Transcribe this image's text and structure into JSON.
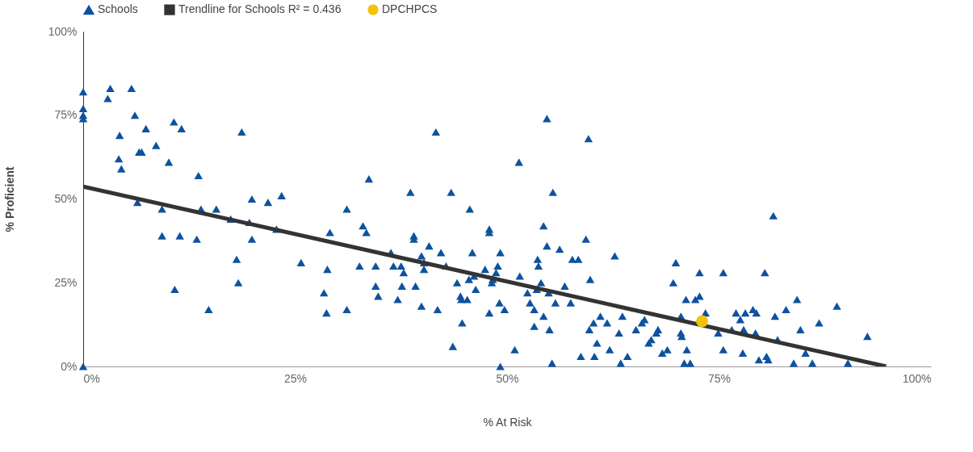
{
  "chart_data": {
    "type": "scatter",
    "xlabel": "% At Risk",
    "ylabel": "% Proficient",
    "xlim": [
      0,
      100
    ],
    "ylim": [
      0,
      100
    ],
    "xticks": [
      {
        "value": 0,
        "label": "0%"
      },
      {
        "value": 25,
        "label": "25%"
      },
      {
        "value": 50,
        "label": "50%"
      },
      {
        "value": 75,
        "label": "75%"
      },
      {
        "value": 100,
        "label": "100%"
      }
    ],
    "yticks": [
      {
        "value": 0,
        "label": "0%"
      },
      {
        "value": 25,
        "label": "25%"
      },
      {
        "value": 50,
        "label": "50%"
      },
      {
        "value": 75,
        "label": "75%"
      },
      {
        "value": 100,
        "label": "100%"
      }
    ],
    "grid": false,
    "legend": "top",
    "series": [
      {
        "name": "Schools",
        "marker": "triangle",
        "color": "#0d52a0",
        "x": [
          0,
          0,
          0,
          0,
          0,
          3.2,
          2.9,
          5.7,
          6.1,
          4.3,
          7.4,
          10.7,
          11.6,
          4.2,
          4.5,
          8.6,
          6.6,
          6.9,
          10.1,
          13.6,
          18.7,
          6.4,
          9.3,
          9.3,
          11.4,
          13.4,
          13.9,
          15.7,
          17.4,
          19.9,
          19.9,
          19.6,
          21.8,
          23.4,
          22.8,
          18.1,
          18.3,
          10.8,
          14.8,
          25.7,
          29.1,
          28.8,
          28.4,
          28.7,
          31.1,
          31.1,
          32.6,
          33,
          33.4,
          33.7,
          34.5,
          34.5,
          34.8,
          38.6,
          36.3,
          36.6,
          37.5,
          37.8,
          37.1,
          37.6,
          39,
          39,
          39.9,
          40.2,
          40.2,
          39.2,
          39.9,
          40.8,
          41.6,
          41.8,
          42.2,
          43.4,
          42.8,
          43.6,
          44.5,
          44.6,
          44.1,
          44.7,
          45.5,
          46.1,
          45.6,
          45.9,
          45.3,
          46.3,
          47.4,
          47.9,
          47.9,
          47.9,
          48.2,
          48.3,
          49.1,
          48.9,
          49.2,
          49.2,
          49.7,
          48.7,
          51.4,
          50.9,
          51.5,
          52.4,
          52.7,
          53.2,
          53.2,
          53.6,
          53.5,
          54,
          53.7,
          54.3,
          54.3,
          54.7,
          54.7,
          54.9,
          55,
          55.4,
          55.3,
          55.7,
          56.2,
          56.8,
          57.5,
          57.7,
          58.4,
          58.7,
          59.3,
          59.6,
          59.7,
          59.8,
          60.2,
          60.3,
          60.6,
          61,
          61.8,
          62.1,
          62.7,
          63.6,
          63.2,
          63.4,
          64.2,
          65.2,
          65.9,
          66.2,
          66.7,
          67,
          67.6,
          67.8,
          68.3,
          68.9,
          69.6,
          69.9,
          70.5,
          70.5,
          70.6,
          70.9,
          71.1,
          71.2,
          71.6,
          72.2,
          72.7,
          72.7,
          73.4,
          74.9,
          75.5,
          75.5,
          76.5,
          77,
          77.5,
          77.8,
          77.9,
          78.1,
          79,
          79.4,
          79.3,
          79.7,
          80.4,
          80.6,
          80.8,
          81.4,
          81.6,
          81.9,
          82.9,
          83.8,
          84.2,
          84.6,
          85.2,
          86,
          86.8,
          88.9,
          90.2,
          92.5
        ],
        "values": [
          82,
          77,
          75,
          74,
          0,
          83,
          80,
          83,
          75,
          69,
          71,
          73,
          71,
          62,
          59,
          66,
          64,
          64,
          61,
          57,
          70,
          49,
          47,
          39,
          39,
          38,
          47,
          47,
          44,
          50,
          38,
          43,
          49,
          51,
          41,
          32,
          25,
          23,
          17,
          31,
          40,
          29,
          22,
          16,
          47,
          17,
          30,
          42,
          40,
          56,
          30,
          24,
          21,
          52,
          34,
          30,
          30,
          28,
          20,
          24,
          39,
          38,
          33,
          31,
          29,
          24,
          18,
          36,
          70,
          17,
          34,
          52,
          30,
          6,
          21,
          20,
          25,
          13,
          26,
          27,
          47,
          34,
          20,
          23,
          29,
          41,
          40,
          16,
          25,
          26,
          19,
          30,
          34,
          0,
          17,
          28,
          61,
          5,
          27,
          22,
          19,
          17,
          12,
          32,
          23,
          25,
          30,
          42,
          15,
          74,
          36,
          22,
          11,
          52,
          1,
          19,
          35,
          24,
          19,
          32,
          32,
          3,
          38,
          68,
          11,
          26,
          13,
          3,
          7,
          15,
          13,
          5,
          33,
          15,
          10,
          1,
          3,
          11,
          13,
          14,
          7,
          8,
          10,
          11,
          4,
          5,
          25,
          31,
          15,
          10,
          9,
          1,
          20,
          5,
          1,
          20,
          28,
          21,
          16,
          10,
          28,
          5,
          11,
          16,
          14,
          4,
          11,
          16,
          17,
          16,
          10,
          2,
          28,
          3,
          2,
          45,
          15,
          8,
          17,
          1,
          20,
          11,
          4,
          1,
          13,
          18,
          1,
          9
        ]
      },
      {
        "name": "Trendline for Schools R² = 0.436",
        "type": "line",
        "color": "#333333",
        "x": [
          0,
          94.7
        ],
        "values": [
          53.7,
          0
        ]
      },
      {
        "name": "DPCHPCS",
        "marker": "circle",
        "color": "#f4c20d",
        "x": [
          73
        ],
        "values": [
          13.5
        ]
      }
    ]
  }
}
